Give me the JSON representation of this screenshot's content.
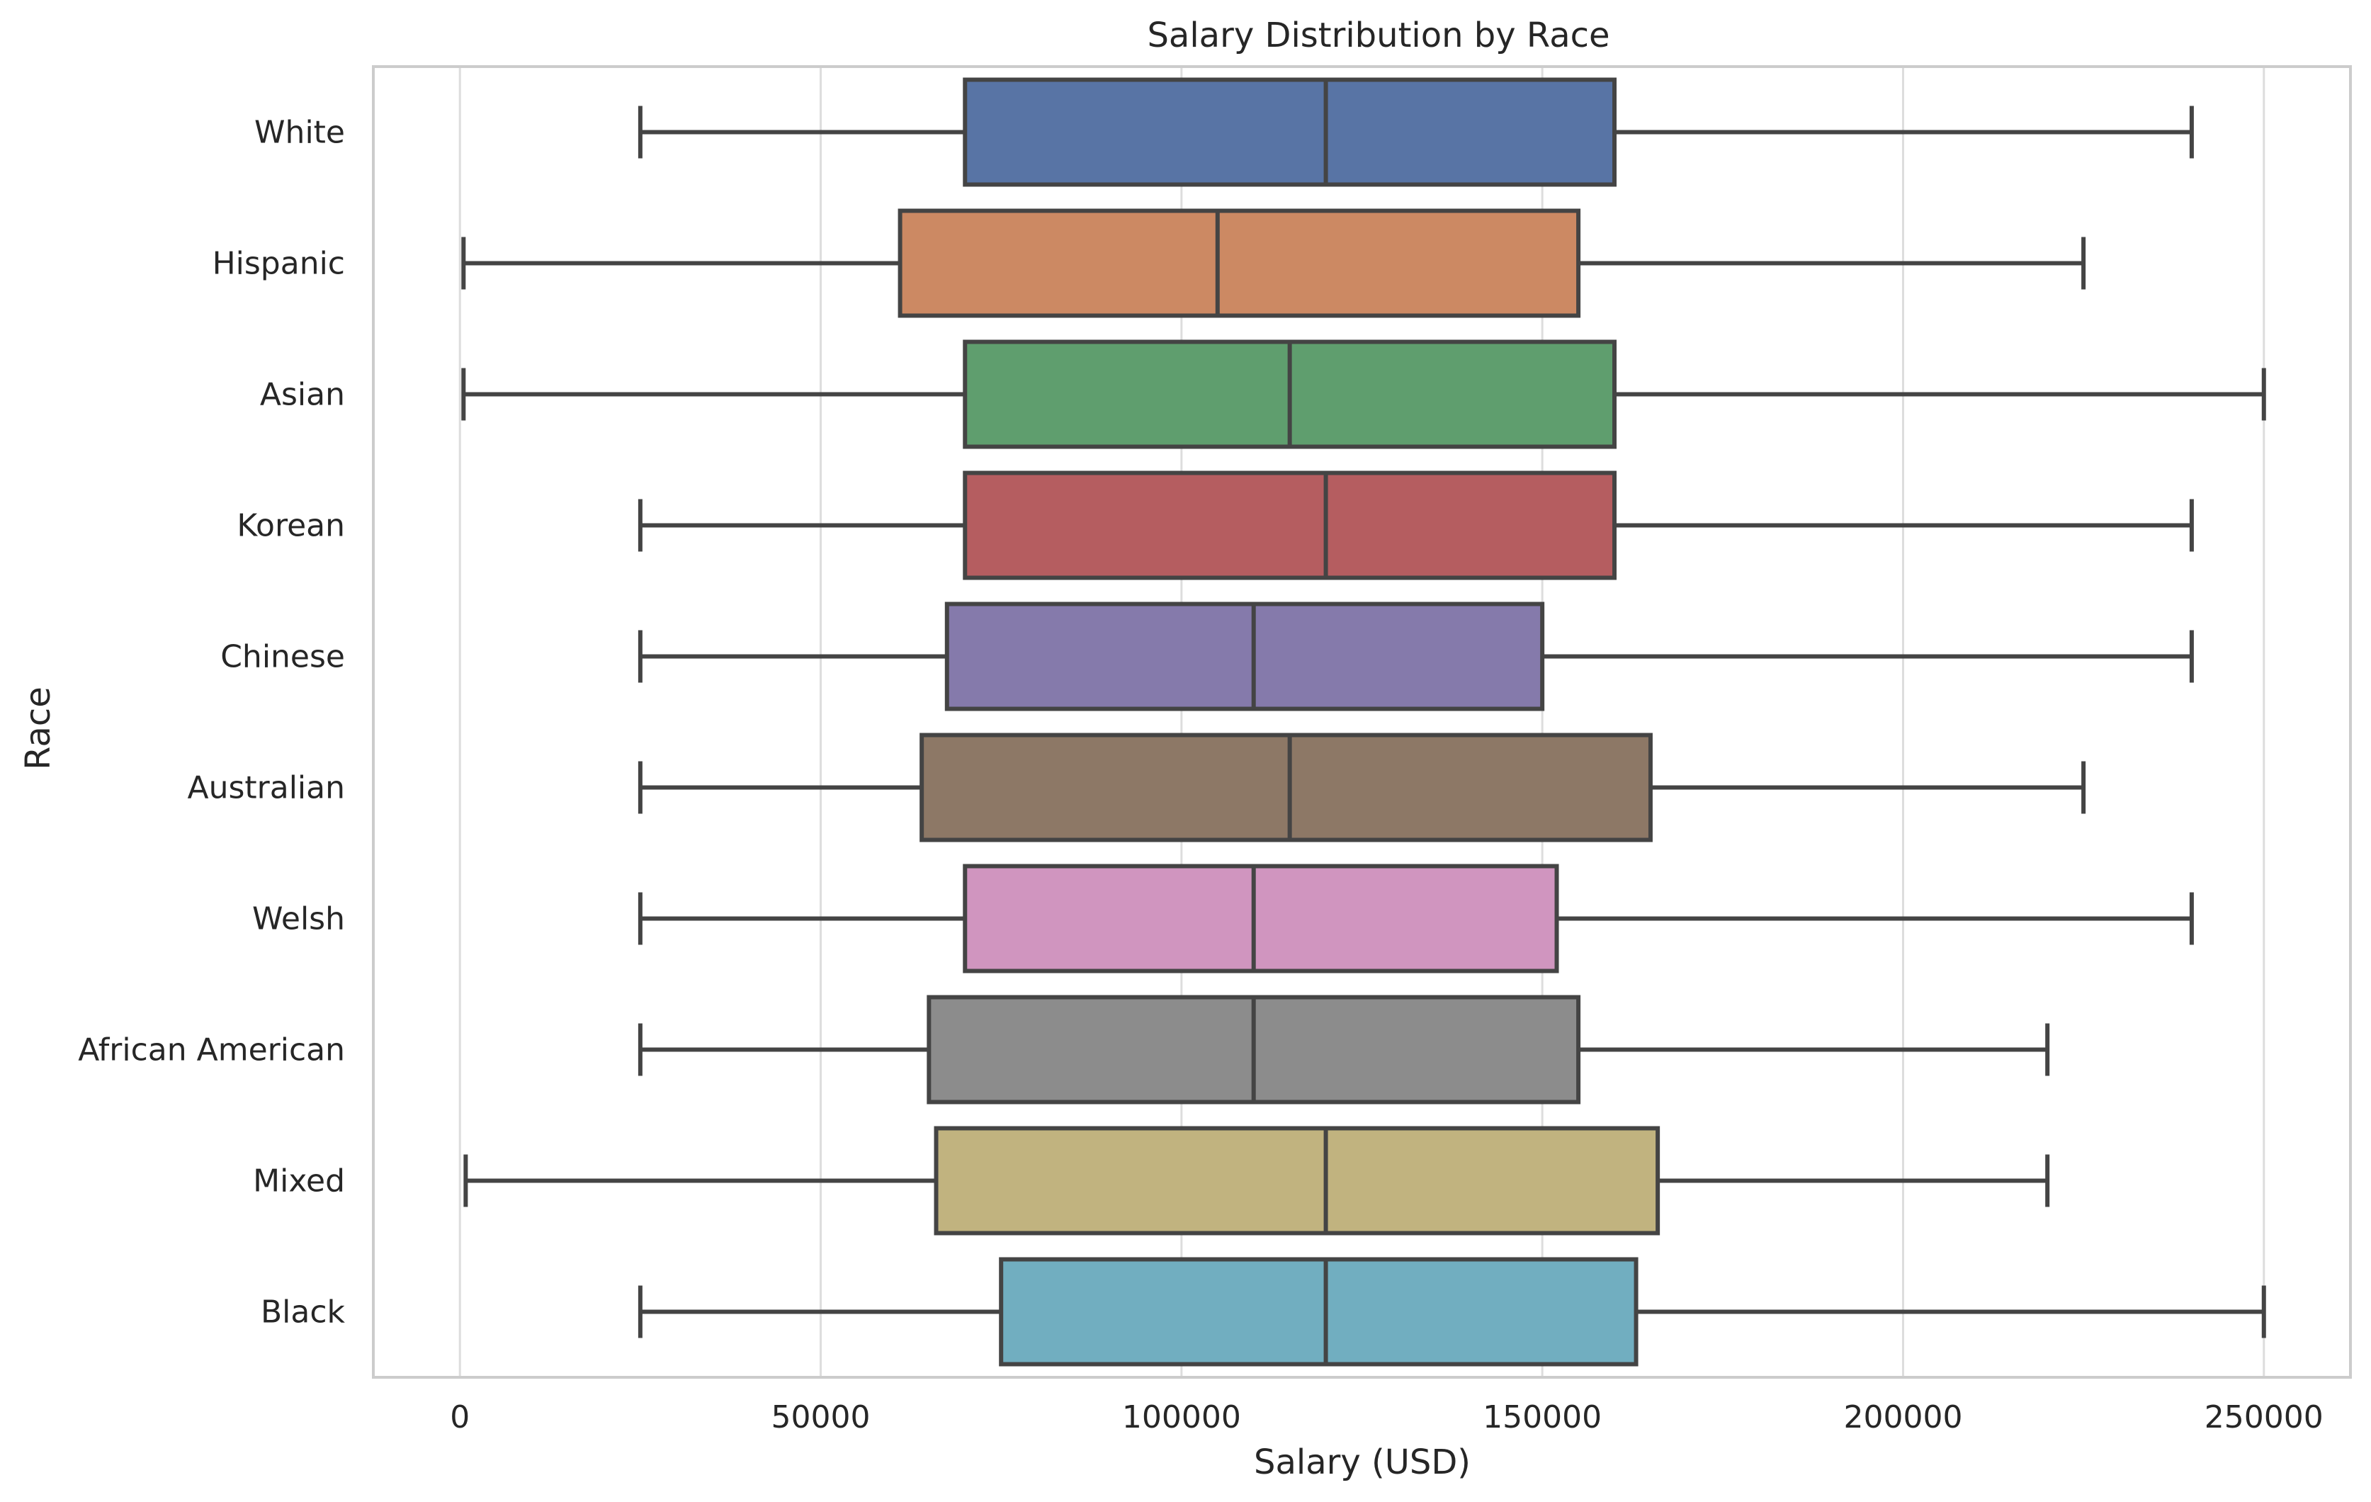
{
  "chart_data": {
    "type": "box",
    "orientation": "horizontal",
    "title": "Salary Distribution by Race",
    "xlabel": "Salary (USD)",
    "ylabel": "Race",
    "xlim": [
      -12000,
      262000
    ],
    "x_ticks": [
      0,
      50000,
      100000,
      150000,
      200000,
      250000
    ],
    "grid": "vertical",
    "categories": [
      "White",
      "Hispanic",
      "Asian",
      "Korean",
      "Chinese",
      "Australian",
      "Welsh",
      "African American",
      "Mixed",
      "Black"
    ],
    "series": [
      {
        "category": "White",
        "color": "#5874a5",
        "whisker_low": 25000,
        "q1": 70000,
        "median": 120000,
        "q3": 160000,
        "whisker_high": 240000
      },
      {
        "category": "Hispanic",
        "color": "#cc8963",
        "whisker_low": 500,
        "q1": 61000,
        "median": 105000,
        "q3": 155000,
        "whisker_high": 225000
      },
      {
        "category": "Asian",
        "color": "#5f9e6e",
        "whisker_low": 500,
        "q1": 70000,
        "median": 115000,
        "q3": 160000,
        "whisker_high": 250000
      },
      {
        "category": "Korean",
        "color": "#b55d60",
        "whisker_low": 25000,
        "q1": 70000,
        "median": 120000,
        "q3": 160000,
        "whisker_high": 240000
      },
      {
        "category": "Chinese",
        "color": "#857aab",
        "whisker_low": 25000,
        "q1": 67500,
        "median": 110000,
        "q3": 150000,
        "whisker_high": 240000
      },
      {
        "category": "Australian",
        "color": "#8d7866",
        "whisker_low": 25000,
        "q1": 64000,
        "median": 115000,
        "q3": 165000,
        "whisker_high": 225000
      },
      {
        "category": "Welsh",
        "color": "#d095bf",
        "whisker_low": 25000,
        "q1": 70000,
        "median": 110000,
        "q3": 152000,
        "whisker_high": 240000
      },
      {
        "category": "African American",
        "color": "#8c8c8c",
        "whisker_low": 25000,
        "q1": 65000,
        "median": 110000,
        "q3": 155000,
        "whisker_high": 220000
      },
      {
        "category": "Mixed",
        "color": "#c1b37f",
        "whisker_low": 800,
        "q1": 66000,
        "median": 120000,
        "q3": 166000,
        "whisker_high": 220000
      },
      {
        "category": "Black",
        "color": "#71aec0",
        "whisker_low": 25000,
        "q1": 75000,
        "median": 120000,
        "q3": 163000,
        "whisker_high": 250000
      }
    ],
    "line_color": "#444444",
    "frame_color": "#cccccc",
    "grid_color": "#dddddd"
  }
}
